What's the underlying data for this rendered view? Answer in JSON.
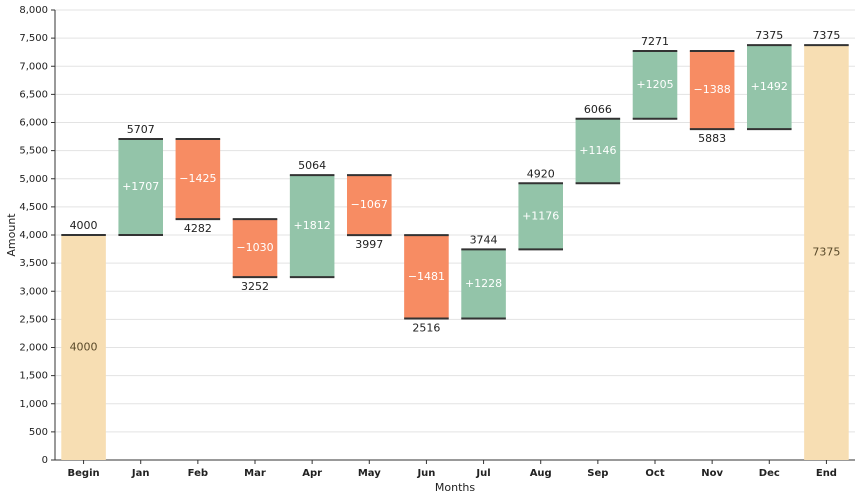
{
  "chart_data": {
    "type": "waterfall",
    "x_label": "Months",
    "y_label": "Amount",
    "categories": [
      "Begin",
      "Jan",
      "Feb",
      "Mar",
      "Apr",
      "May",
      "Jun",
      "Jul",
      "Aug",
      "Sep",
      "Oct",
      "Nov",
      "Dec",
      "End"
    ],
    "values": [
      4000,
      1707,
      -1425,
      -1030,
      1812,
      -1067,
      -1481,
      1228,
      1176,
      1146,
      1205,
      -1388,
      1492,
      7375
    ],
    "value_labels": [
      "4000",
      "+1707",
      "−1425",
      "−1030",
      "+1812",
      "−1067",
      "−1481",
      "+1228",
      "+1176",
      "+1146",
      "+1205",
      "−1388",
      "+1492",
      "7375"
    ],
    "totals": [
      4000,
      5707,
      4282,
      3252,
      5064,
      3997,
      2516,
      3744,
      4920,
      6066,
      7271,
      5883,
      7375,
      7375
    ],
    "colors": {
      "total": "#f7deb3",
      "increase": "#93c4a9",
      "decrease": "#f78c63"
    },
    "ylim": [
      0,
      8000
    ],
    "yticks": [
      0,
      {
        "value": 500,
        "label": "500"
      },
      {
        "value": 1000,
        "label": "1,000"
      },
      {
        "value": 1500,
        "label": "1,500"
      },
      {
        "value": 2000,
        "label": "2,000"
      },
      {
        "value": 2500,
        "label": "2,500"
      },
      {
        "value": 3000,
        "label": "3,000"
      },
      {
        "value": 3500,
        "label": "3,500"
      },
      {
        "value": 4000,
        "label": "4,000"
      },
      {
        "value": 4500,
        "label": "4,500"
      },
      {
        "value": 5000,
        "label": "5,000"
      },
      {
        "value": 5500,
        "label": "5,500"
      },
      {
        "value": 6000,
        "label": "6,000"
      },
      {
        "value": 6500,
        "label": "6,500"
      },
      {
        "value": 7000,
        "label": "7,000"
      },
      {
        "value": 7500,
        "label": "7,500"
      },
      {
        "value": 8000,
        "label": "8,000"
      }
    ],
    "grid": true
  }
}
